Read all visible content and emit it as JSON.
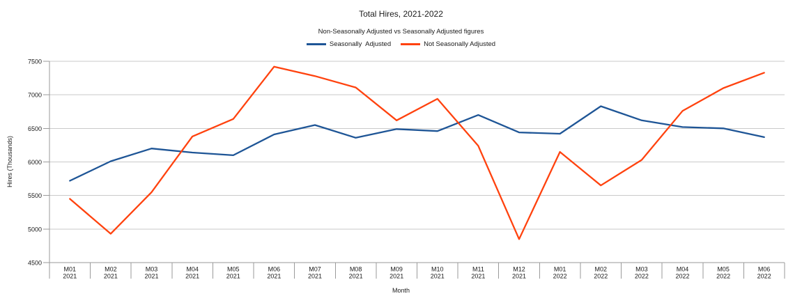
{
  "chart_data": {
    "type": "line",
    "title": "Total Hires, 2021-2022",
    "subtitle": "Non-Seasonally Adjusted vs Seasonally Adjusted figures",
    "xlabel": "Month",
    "ylabel": "Hires (Thousands)",
    "ylim": [
      4500,
      7500
    ],
    "y_ticks": [
      4500,
      5000,
      5500,
      6000,
      6500,
      7000,
      7500
    ],
    "grid": true,
    "legend_position": "top",
    "categories": [
      {
        "month": "M01",
        "year": "2021"
      },
      {
        "month": "M02",
        "year": "2021"
      },
      {
        "month": "M03",
        "year": "2021"
      },
      {
        "month": "M04",
        "year": "2021"
      },
      {
        "month": "M05",
        "year": "2021"
      },
      {
        "month": "M06",
        "year": "2021"
      },
      {
        "month": "M07",
        "year": "2021"
      },
      {
        "month": "M08",
        "year": "2021"
      },
      {
        "month": "M09",
        "year": "2021"
      },
      {
        "month": "M10",
        "year": "2021"
      },
      {
        "month": "M11",
        "year": "2021"
      },
      {
        "month": "M12",
        "year": "2021"
      },
      {
        "month": "M01",
        "year": "2022"
      },
      {
        "month": "M02",
        "year": "2022"
      },
      {
        "month": "M03",
        "year": "2022"
      },
      {
        "month": "M04",
        "year": "2022"
      },
      {
        "month": "M05",
        "year": "2022"
      },
      {
        "month": "M06",
        "year": "2022"
      }
    ],
    "series": [
      {
        "name": "Seasonally  Adjusted",
        "color": "#1E5596",
        "values": [
          5720,
          6010,
          6200,
          6140,
          6100,
          6410,
          6550,
          6360,
          6490,
          6460,
          6700,
          6440,
          6420,
          6830,
          6620,
          6520,
          6500,
          6370
        ]
      },
      {
        "name": "Not Seasonally Adjusted",
        "color": "#FF420E",
        "values": [
          5450,
          4930,
          5550,
          6380,
          6640,
          7420,
          7280,
          7110,
          6620,
          6940,
          6240,
          4850,
          6150,
          5650,
          6030,
          6760,
          7100,
          7330
        ]
      }
    ]
  },
  "colors": {
    "gridline": "#c9c9c9",
    "axis": "#9a9a9a",
    "text": "#1a1a1a"
  }
}
